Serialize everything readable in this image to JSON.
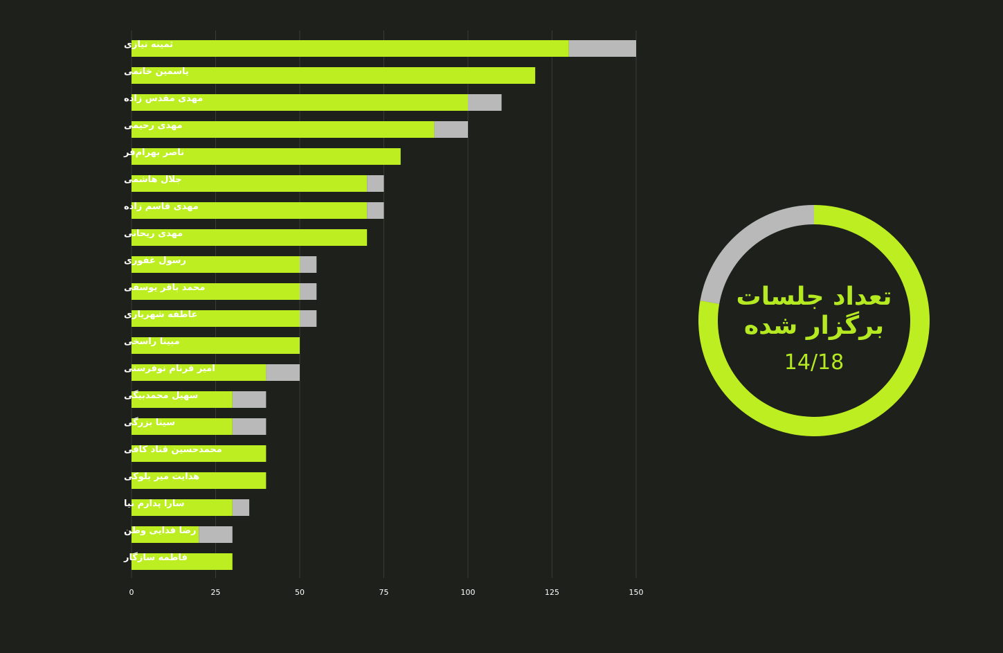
{
  "colors": {
    "background": "#1e201c",
    "primary": "#bdee22",
    "secondary": "#b9b9b9",
    "grid": "#3a3c37",
    "text": "#ffffff",
    "donut_text": "#b5ea22"
  },
  "chart_data": [
    {
      "type": "bar",
      "orientation": "horizontal",
      "stacked": true,
      "categories": [
        "ثمینه نیازی",
        "یاسمین خاتمی",
        "مهدی مقدس زاده",
        "مهدی رحیمی",
        "ناصر بهرام‌فر",
        "جلال هاشمی",
        "مهدی قاسم زاده",
        "مهدی ریحانی",
        "رسول غفوری",
        "محمد باقر یوسفی",
        "عاطفه شهریاری",
        "مبینا راسخی",
        "امیر فرنام نوفرستی",
        "سهیل محمدبیگی",
        "سینا بزرگی",
        "محمدحسین قناد کافی",
        "هدایت میر بلوکی",
        "سارا پدارم نیا",
        "رضا فدایی وطن",
        "فاطمه سازگار"
      ],
      "series": [
        {
          "color": "#bdee22",
          "values": [
            130,
            120,
            100,
            90,
            80,
            70,
            70,
            70,
            50,
            50,
            50,
            50,
            40,
            30,
            30,
            40,
            40,
            30,
            20,
            30
          ]
        },
        {
          "color": "#b9b9b9",
          "values": [
            20,
            0,
            10,
            10,
            0,
            5,
            5,
            0,
            5,
            5,
            5,
            0,
            10,
            10,
            10,
            0,
            0,
            5,
            10,
            0
          ]
        }
      ],
      "xticks": [
        0,
        25,
        50,
        75,
        100,
        125,
        150
      ],
      "xlim": [
        0,
        150
      ],
      "grid": true,
      "legend": false
    },
    {
      "type": "pie",
      "variant": "donut",
      "title": [
        "تعداد جلسات",
        "برگزار شده"
      ],
      "center_label": "14/18",
      "slices": [
        {
          "value": 14,
          "color": "#bdee22"
        },
        {
          "value": 4,
          "color": "#b9b9b9"
        }
      ]
    }
  ]
}
